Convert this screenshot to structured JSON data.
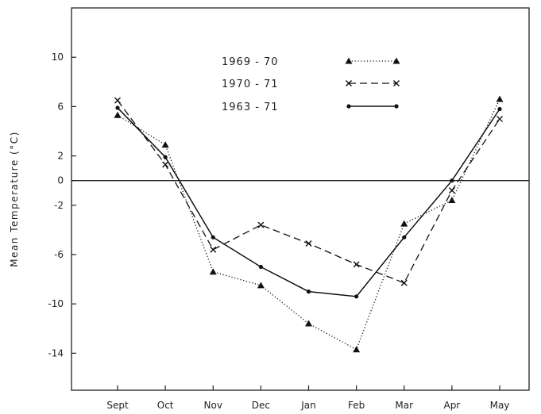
{
  "chart_data": {
    "type": "line",
    "categories": [
      "Sept",
      "Oct",
      "Nov",
      "Dec",
      "Jan",
      "Feb",
      "Mar",
      "Apr",
      "May"
    ],
    "ylabel": "Mean Temperature (°C)",
    "ylim": [
      -17,
      14
    ],
    "yticks": [
      10,
      6,
      2,
      0,
      -2,
      -6,
      -10,
      -14
    ],
    "zero_line": true,
    "grid": false,
    "legend_position": "top-center",
    "series": [
      {
        "name": "1969 - 70",
        "marker": "triangle",
        "line_style": "dotted",
        "values": [
          5.3,
          2.9,
          -7.4,
          -8.5,
          -11.6,
          -13.7,
          -3.5,
          -1.6,
          6.6
        ]
      },
      {
        "name": "1970 - 71",
        "marker": "cross",
        "line_style": "dashed",
        "values": [
          6.5,
          1.3,
          -5.6,
          -3.6,
          -5.1,
          -6.8,
          -8.3,
          -0.8,
          5.0
        ]
      },
      {
        "name": "1963 - 71",
        "marker": "dot",
        "line_style": "solid",
        "values": [
          5.9,
          1.9,
          -4.6,
          -7.0,
          -9.0,
          -9.4,
          -4.6,
          0.0,
          5.8
        ]
      }
    ]
  }
}
